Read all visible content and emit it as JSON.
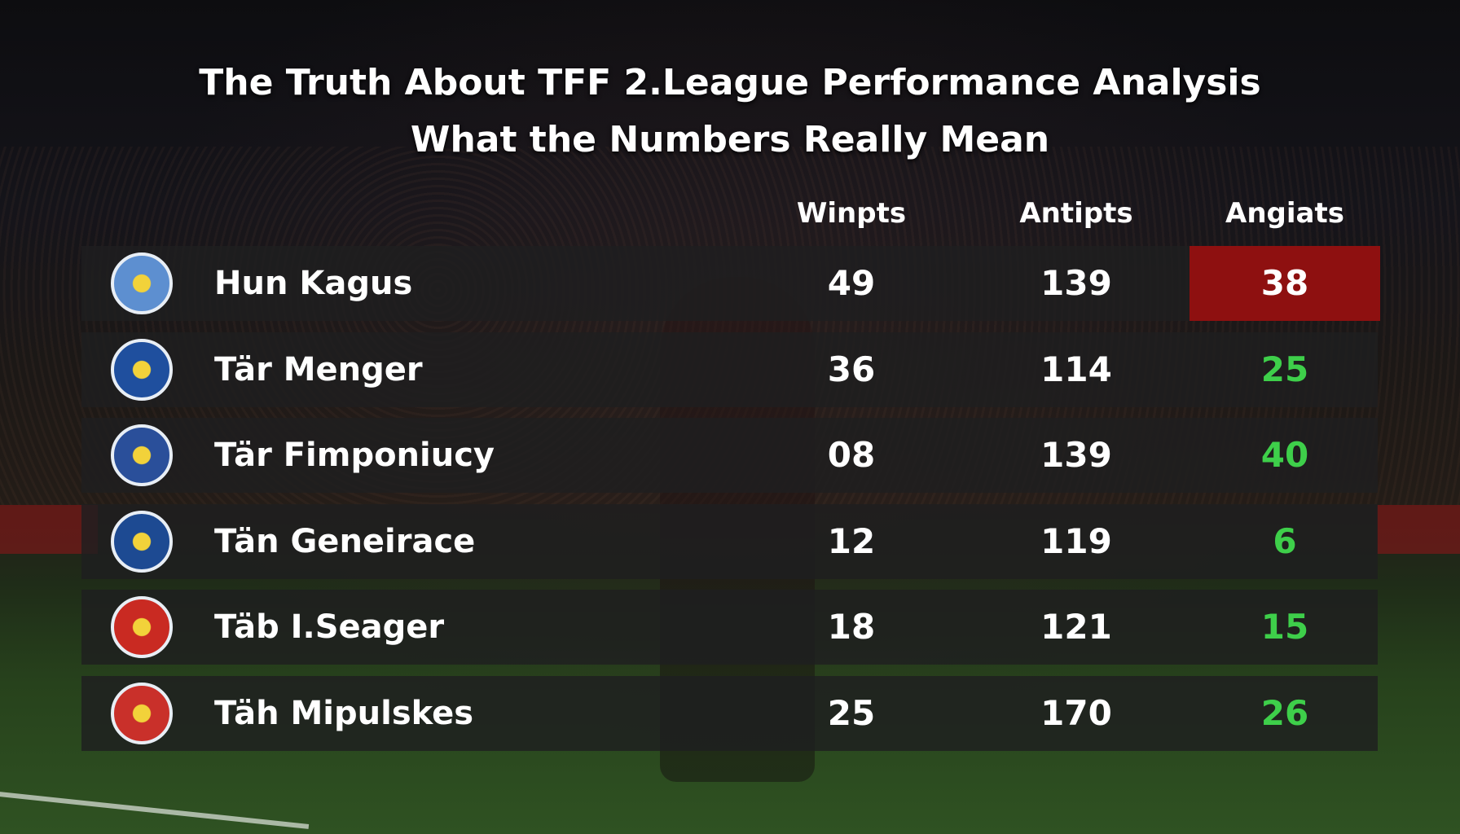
{
  "header": {
    "title": "The Truth About TFF 2.League Performance Analysis",
    "subtitle": "What the Numbers Really Mean"
  },
  "table": {
    "columns": [
      "Winpts",
      "Antipts",
      "Angiats"
    ],
    "rows": [
      [
        "Hun Kagus",
        "49",
        "139",
        "38"
      ],
      [
        "Tär Menger",
        "36",
        "114",
        "25"
      ],
      [
        "Tär Fimponiucy",
        "08",
        "139",
        "40"
      ],
      [
        "Tän Geneirace",
        "12",
        "119",
        "6"
      ],
      [
        "Täb I.Seager",
        "18",
        "121",
        "15"
      ],
      [
        "Täh Mipulskes",
        "25",
        "170",
        "26"
      ]
    ]
  }
}
